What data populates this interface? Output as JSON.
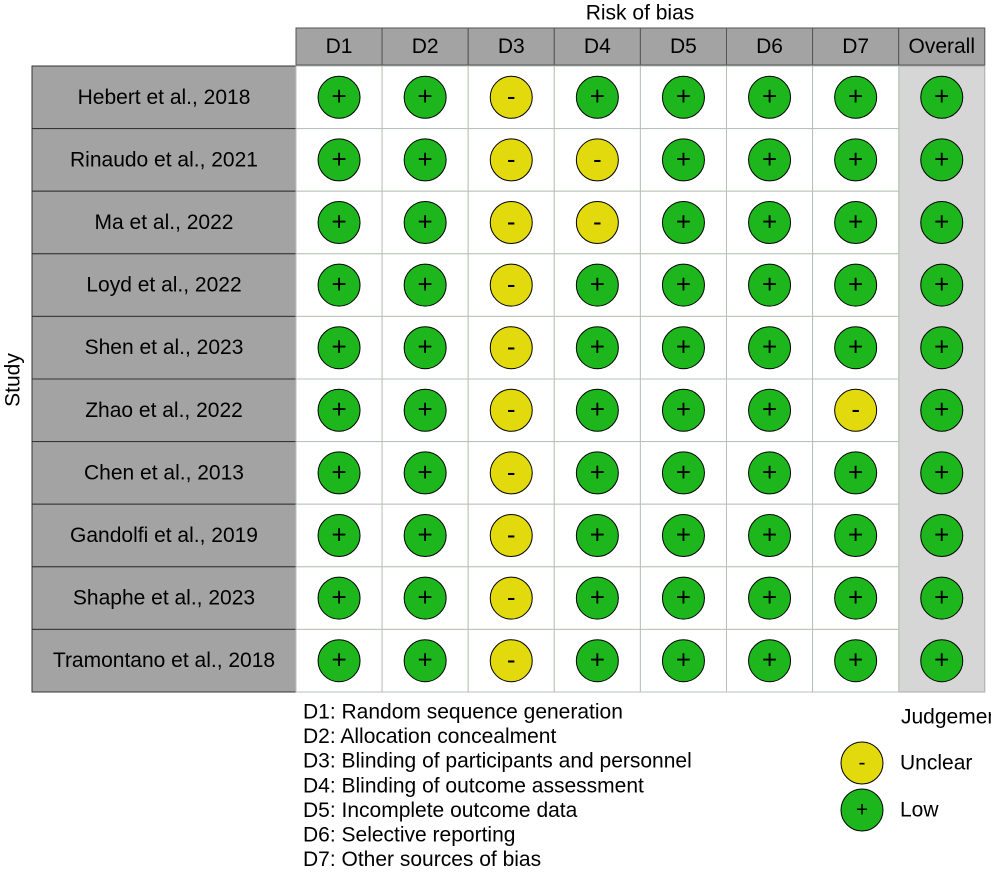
{
  "title": "Risk of bias",
  "row_axis_label": "Study",
  "columns": [
    "D1",
    "D2",
    "D3",
    "D4",
    "D5",
    "D6",
    "D7",
    "Overall"
  ],
  "rows": [
    {
      "study": "Hebert et al., 2018",
      "cells": [
        "+",
        "+",
        "-",
        "+",
        "+",
        "+",
        "+",
        "+"
      ]
    },
    {
      "study": "Rinaudo et al., 2021",
      "cells": [
        "+",
        "+",
        "-",
        "-",
        "+",
        "+",
        "+",
        "+"
      ]
    },
    {
      "study": "Ma et al., 2022",
      "cells": [
        "+",
        "+",
        "-",
        "-",
        "+",
        "+",
        "+",
        "+"
      ]
    },
    {
      "study": "Loyd et al., 2022",
      "cells": [
        "+",
        "+",
        "-",
        "+",
        "+",
        "+",
        "+",
        "+"
      ]
    },
    {
      "study": "Shen et al., 2023",
      "cells": [
        "+",
        "+",
        "-",
        "+",
        "+",
        "+",
        "+",
        "+"
      ]
    },
    {
      "study": "Zhao et al., 2022",
      "cells": [
        "+",
        "+",
        "-",
        "+",
        "+",
        "+",
        "-",
        "+"
      ]
    },
    {
      "study": "Chen et al., 2013",
      "cells": [
        "+",
        "+",
        "-",
        "+",
        "+",
        "+",
        "+",
        "+"
      ]
    },
    {
      "study": "Gandolfi et al., 2019",
      "cells": [
        "+",
        "+",
        "-",
        "+",
        "+",
        "+",
        "+",
        "+"
      ]
    },
    {
      "study": "Shaphe et al., 2023",
      "cells": [
        "+",
        "+",
        "-",
        "+",
        "+",
        "+",
        "+",
        "+"
      ]
    },
    {
      "study": "Tramontano et al., 2018",
      "cells": [
        "+",
        "+",
        "-",
        "+",
        "+",
        "+",
        "+",
        "+"
      ]
    }
  ],
  "domain_descriptions": [
    "D1: Random sequence generation",
    "D2: Allocation concealment",
    "D3: Blinding of participants and personnel",
    "D4: Blinding of outcome assessment",
    "D5: Incomplete outcome data",
    "D6: Selective reporting",
    "D7: Other sources of bias"
  ],
  "legend": {
    "title": "Judgement",
    "levels": [
      {
        "symbol": "-",
        "label": "Unclear",
        "color": "#e2da0c"
      },
      {
        "symbol": "+",
        "label": "Low",
        "color": "#1db71d"
      }
    ]
  }
}
